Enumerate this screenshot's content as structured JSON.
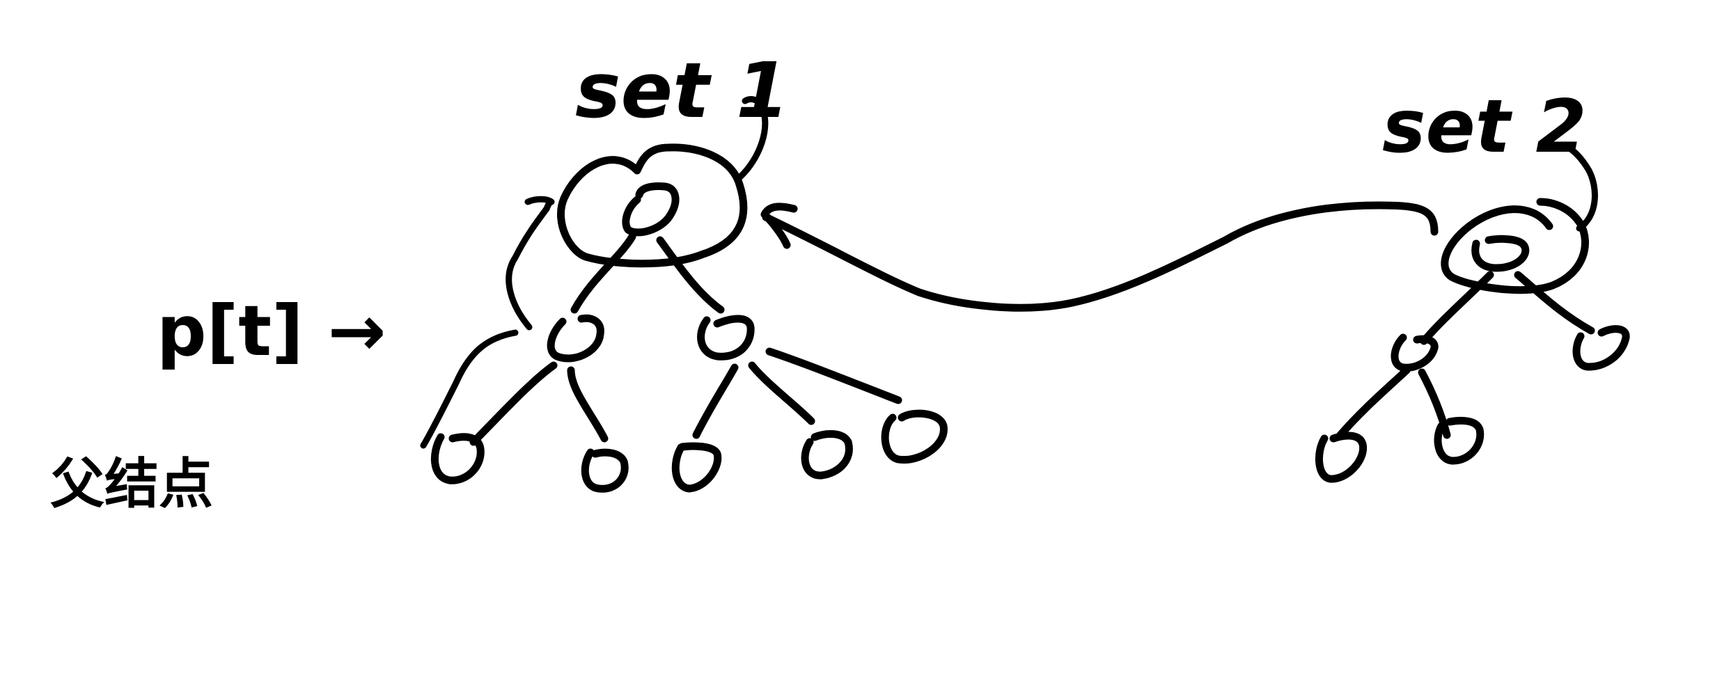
{
  "labels": {
    "set1": "set 1",
    "set2": "set 2",
    "parent_array": "p[t] →",
    "parent_node": "父结点"
  },
  "colors": {
    "ink": "#000000",
    "background": "#ffffff"
  },
  "trees": [
    {
      "name": "set 1",
      "root_count": 1,
      "level1_count": 2,
      "leaf_count": 5
    },
    {
      "name": "set 2",
      "root_count": 1,
      "level1_count": 2,
      "leaf_count": 2
    }
  ]
}
